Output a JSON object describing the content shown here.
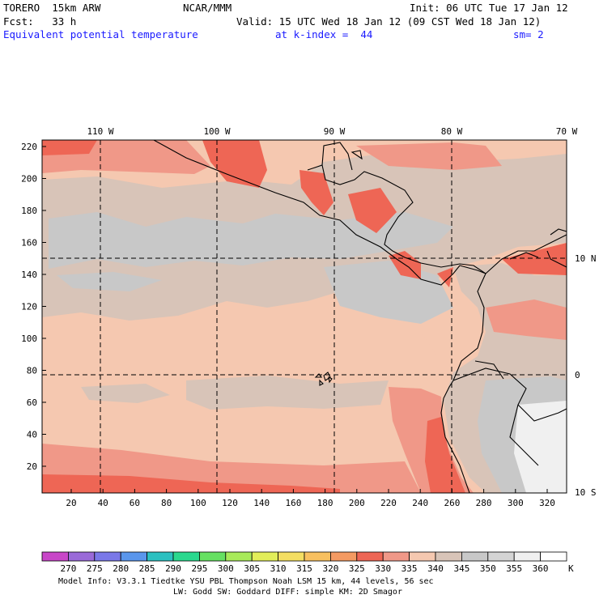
{
  "header": {
    "model": "TORERO  15km ARW",
    "org": "NCAR/MMM",
    "init": "Init: 06 UTC Tue 17 Jan 12",
    "fcst": "Fcst:   33 h",
    "valid": "Valid: 15 UTC Wed 18 Jan 12 (09 CST Wed 18 Jan 12)",
    "field": "Equivalent potential temperature",
    "level": "at k-index =  44",
    "smooth": "sm= 2"
  },
  "top_lon_labels": [
    "110 W",
    "100 W",
    "90 W",
    "80 W",
    "70 W"
  ],
  "right_lat_labels": [
    "10 N",
    "0",
    "10 S"
  ],
  "y_ticks": [
    "220",
    "200",
    "180",
    "160",
    "140",
    "120",
    "100",
    "80",
    "60",
    "40",
    "20"
  ],
  "x_ticks": [
    "20",
    "40",
    "60",
    "80",
    "100",
    "120",
    "140",
    "160",
    "180",
    "200",
    "220",
    "240",
    "260",
    "280",
    "300",
    "320"
  ],
  "colorbar": {
    "labels": [
      "270",
      "275",
      "280",
      "285",
      "290",
      "295",
      "300",
      "305",
      "310",
      "315",
      "320",
      "325",
      "330",
      "335",
      "340",
      "345",
      "350",
      "355",
      "360"
    ],
    "unit": "K",
    "colors": [
      "#c846c8",
      "#9a6ad8",
      "#7a78e8",
      "#5a96ec",
      "#2cc0c0",
      "#2ad88e",
      "#66e062",
      "#a8ea5a",
      "#e2ee5a",
      "#f4de62",
      "#f8c060",
      "#f49a62",
      "#ee6655",
      "#f09888",
      "#f5c8b0",
      "#d8c4b8",
      "#c8c8c8",
      "#d4d4d4",
      "#f0f0f0"
    ]
  },
  "footer": {
    "line1": "Model Info: V3.3.1     Tiedtke YSU PBL   Thompson     Noah LSM  15 km,    44 levels,    56 sec",
    "line2": "LW: Godd SW: Goddard DIFF: simple KM: 2D Smagor"
  }
}
